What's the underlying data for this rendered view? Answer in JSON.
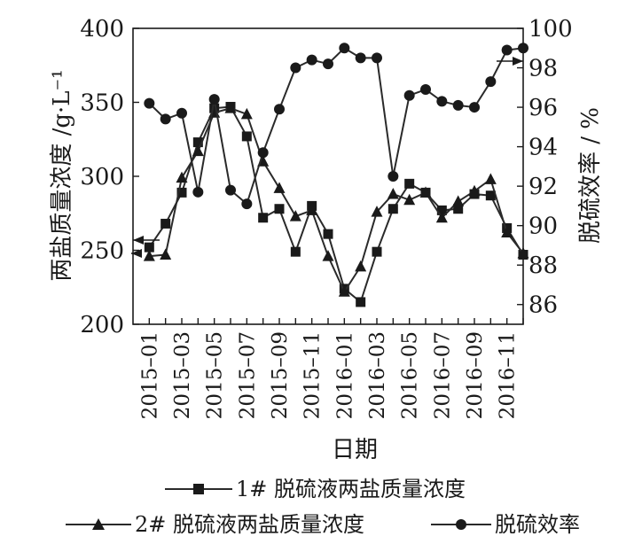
{
  "chart_data": {
    "type": "line",
    "xlabel": "日期",
    "ylabel_left": "两盐质量浓度 /g·L⁻¹",
    "ylabel_right": "脱硫效率 / %",
    "ylim_left": [
      200,
      400
    ],
    "ylim_right": [
      85,
      100
    ],
    "yticks_left": [
      "200",
      "250",
      "300",
      "350",
      "400"
    ],
    "yticks_right": [
      "86",
      "88",
      "90",
      "92",
      "94",
      "96",
      "98",
      "100"
    ],
    "xticks": [
      "2015–01",
      "2015–03",
      "2015–05",
      "2015–07",
      "2015–09",
      "2015–11",
      "2016–01",
      "2016–03",
      "2016–05",
      "2016–07",
      "2016–09",
      "2016–11"
    ],
    "x_months": [
      "2014-12",
      "2015-01",
      "2015-02",
      "2015-03",
      "2015-04",
      "2015-05",
      "2015-06",
      "2015-07",
      "2015-08",
      "2015-09",
      "2015-10",
      "2015-11",
      "2015-12",
      "2016-01",
      "2016-02",
      "2016-03",
      "2016-04",
      "2016-05",
      "2016-06",
      "2016-07",
      "2016-08",
      "2016-09",
      "2016-10",
      "2016-11",
      "2016-12"
    ],
    "series": [
      {
        "name": "1# 脱硫液两盐质量浓度",
        "axis": "left",
        "marker": "square",
        "values": [
          null,
          252,
          268,
          289,
          323,
          346,
          347,
          327,
          272,
          278,
          249,
          280,
          261,
          224,
          215,
          249,
          278,
          295,
          289,
          277,
          278,
          288,
          287,
          265,
          247
        ]
      },
      {
        "name": "2# 脱硫液两盐质量浓度",
        "axis": "left",
        "marker": "triangle",
        "values": [
          null,
          246,
          247,
          299,
          317,
          343,
          346,
          342,
          310,
          292,
          273,
          277,
          246,
          222,
          239,
          276,
          288,
          284,
          289,
          272,
          283,
          290,
          298,
          262,
          248
        ]
      },
      {
        "name": "脱硫效率",
        "axis": "right",
        "marker": "circle",
        "values": [
          null,
          96.2,
          95.4,
          95.7,
          91.7,
          96.4,
          91.8,
          91.1,
          93.7,
          95.9,
          98.0,
          98.4,
          98.2,
          99.0,
          98.5,
          98.5,
          92.5,
          96.6,
          96.9,
          96.3,
          96.1,
          96.0,
          97.3,
          98.9,
          99.0
        ]
      }
    ],
    "legend": {
      "row1": [
        {
          "label": "1# 脱硫液两盐质量浓度",
          "marker": "square"
        }
      ],
      "row2": [
        {
          "label": "2# 脱硫液两盐质量浓度",
          "marker": "triangle"
        },
        {
          "label": "脱硫效率",
          "marker": "circle"
        }
      ]
    },
    "arrows": {
      "left": "points to left axis",
      "right": "points to right axis"
    }
  }
}
